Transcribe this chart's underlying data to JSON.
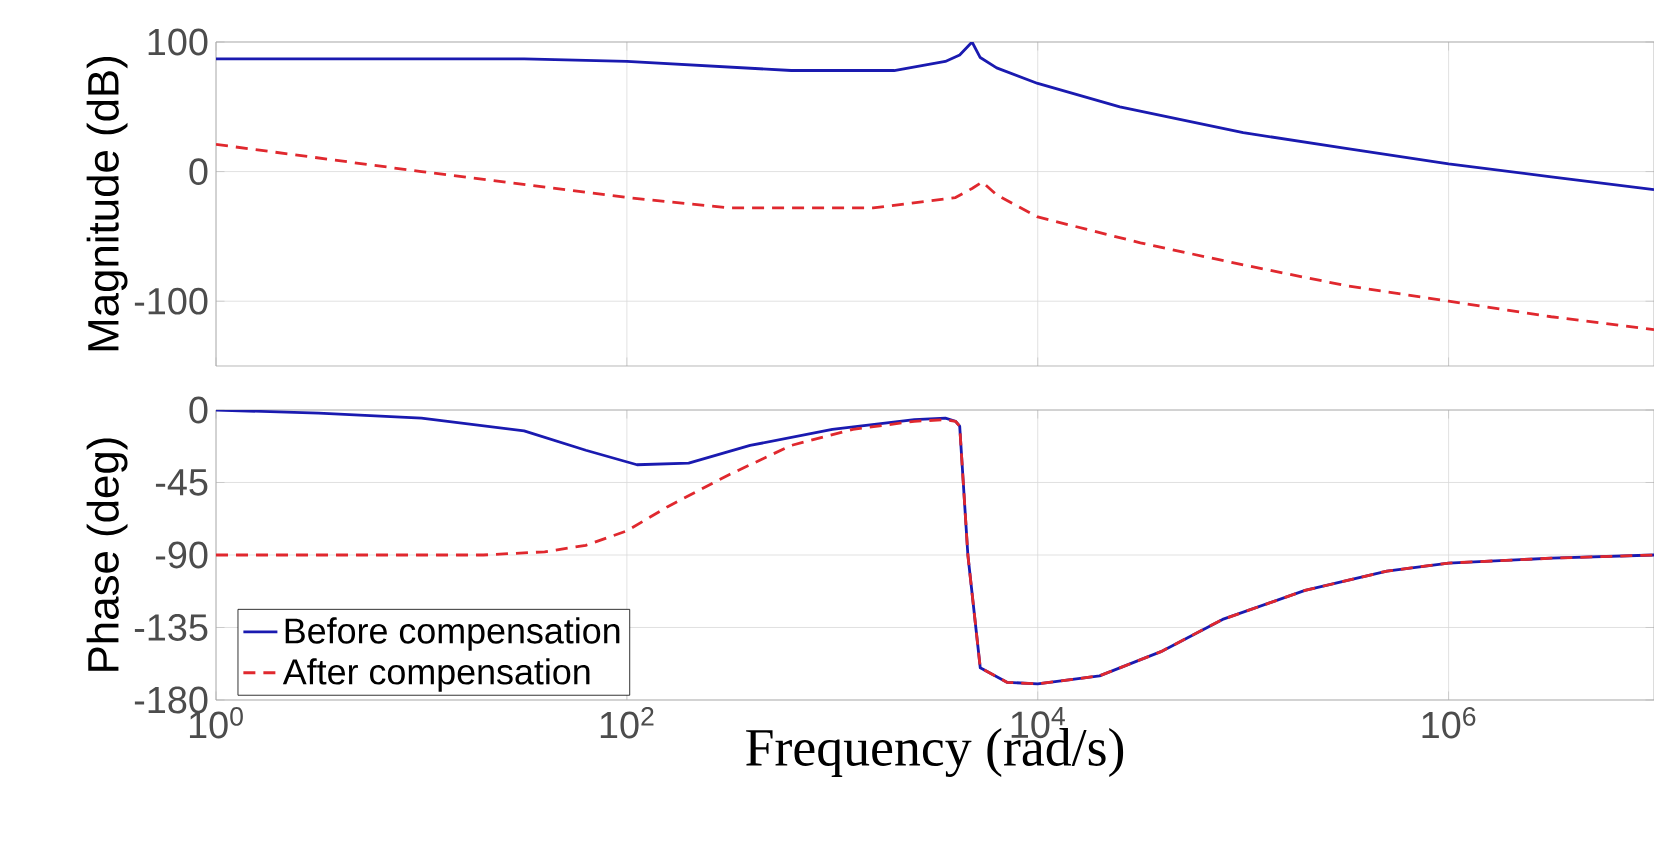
{
  "chart_data": [
    {
      "type": "line",
      "ylabel": "Magnitude (dB)",
      "log": "x",
      "grid": true,
      "legend": false,
      "tick_labels": "y",
      "marker": "none",
      "xlim": [
        1,
        10000000
      ],
      "xticks": [
        {
          "value": 1,
          "label": null
        },
        {
          "value": 100,
          "label": null
        },
        {
          "value": 10000,
          "label": null
        },
        {
          "value": 1000000,
          "label": null
        }
      ],
      "ylim": [
        -150,
        100
      ],
      "yticks": [
        -100,
        0,
        100
      ],
      "series": [
        {
          "color": "#1a1ab0",
          "line_style": "solid",
          "x": [
            1,
            10,
            31.6,
            100,
            631,
            2000,
            3550,
            4170,
            4790,
            5250,
            6310,
            10000,
            25100,
            100000,
            316000,
            1000000,
            3160000,
            10000000
          ],
          "values": [
            87,
            87,
            87,
            85,
            78,
            78,
            85,
            90,
            100,
            88,
            80,
            68,
            50,
            30,
            18,
            6,
            -4,
            -14
          ]
        },
        {
          "color": "#e0282e",
          "line_style": "dashed",
          "x": [
            1,
            10,
            100,
            316,
            1580,
            3980,
            4790,
            5370,
            6310,
            10000,
            31600,
            100000,
            316000,
            1000000,
            3160000,
            10000000
          ],
          "values": [
            21,
            0,
            -20,
            -28,
            -28,
            -20,
            -13,
            -8,
            -18,
            -35,
            -55,
            -72,
            -88,
            -100,
            -112,
            -122
          ]
        }
      ]
    },
    {
      "type": "line",
      "xlabel": "Frequency (rad/s)",
      "ylabel": "Phase (deg)",
      "log": "x",
      "grid": true,
      "legend": "bottom left",
      "marker": "none",
      "xlim": [
        1,
        10000000
      ],
      "xticks": [
        {
          "value": 1,
          "label": "10$^{0}$"
        },
        {
          "value": 100,
          "label": "10$^{2}$"
        },
        {
          "value": 10000,
          "label": "10$^{4}$"
        },
        {
          "value": 1000000,
          "label": "10$^{6}$"
        }
      ],
      "ylim": [
        -180,
        0
      ],
      "yticks": [
        -180,
        -135,
        -90,
        -45,
        0
      ],
      "series": [
        {
          "name": "Before compensation",
          "color": "#1a1ab0",
          "line_style": "solid",
          "x": [
            1,
            3.16,
            10,
            31.6,
            63.1,
            112,
            200,
            398,
            1000,
            2510,
            3550,
            3980,
            4170,
            4570,
            5250,
            7080,
            10000,
            20000,
            39800,
            79400,
            200000,
            501000,
            1000000,
            3160000,
            10000000
          ],
          "values": [
            0,
            -2,
            -5,
            -13,
            -25,
            -34,
            -33,
            -22,
            -12,
            -6,
            -5,
            -7,
            -10,
            -90,
            -160,
            -169,
            -170,
            -165,
            -150,
            -130,
            -112,
            -100,
            -95,
            -92,
            -90
          ]
        },
        {
          "name": "After compensation",
          "color": "#e0282e",
          "line_style": "dashed",
          "x": [
            1,
            20,
            39.8,
            63.1,
            100,
            158,
            316,
            631,
            1260,
            2510,
            3550,
            3980,
            4170,
            4570,
            5250,
            7080,
            10000,
            20000,
            39800,
            79400,
            200000,
            501000,
            1000000,
            3160000,
            10000000
          ],
          "values": [
            -90,
            -90,
            -88,
            -84,
            -75,
            -60,
            -40,
            -22,
            -12,
            -7,
            -6,
            -7,
            -10,
            -90,
            -160,
            -169,
            -170,
            -165,
            -150,
            -130,
            -112,
            -100,
            -95,
            -92,
            -90
          ]
        }
      ]
    }
  ]
}
